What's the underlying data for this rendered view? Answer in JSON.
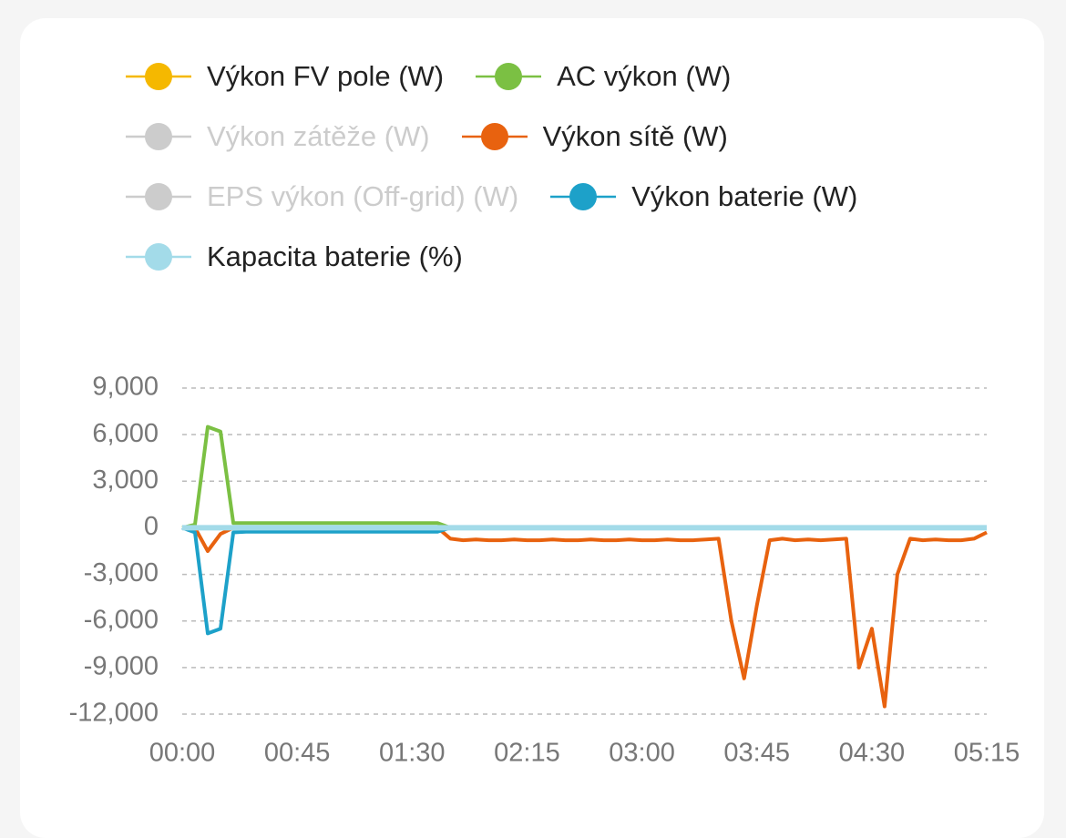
{
  "chart_data": {
    "type": "line",
    "x": [
      0,
      5,
      10,
      15,
      20,
      25,
      30,
      35,
      40,
      45,
      50,
      55,
      60,
      65,
      70,
      75,
      80,
      85,
      90,
      95,
      100,
      105,
      110,
      115,
      120,
      125,
      130,
      135,
      140,
      145,
      150,
      155,
      160,
      165,
      170,
      175,
      180,
      185,
      190,
      195,
      200,
      205,
      210,
      215,
      220,
      225,
      230,
      235,
      240,
      245,
      250,
      255,
      260,
      265,
      270,
      275,
      280,
      285,
      290,
      295,
      300,
      305,
      310,
      315
    ],
    "xlim": [
      0,
      315
    ],
    "xticks": [
      {
        "value": 0,
        "label": "00:00"
      },
      {
        "value": 45,
        "label": "00:45"
      },
      {
        "value": 90,
        "label": "01:30"
      },
      {
        "value": 135,
        "label": "02:15"
      },
      {
        "value": 180,
        "label": "03:00"
      },
      {
        "value": 225,
        "label": "03:45"
      },
      {
        "value": 270,
        "label": "04:30"
      },
      {
        "value": 315,
        "label": "05:15"
      }
    ],
    "ylim": [
      -12000,
      9000
    ],
    "yticks": [
      {
        "value": 9000,
        "label": "9,000"
      },
      {
        "value": 6000,
        "label": "6,000"
      },
      {
        "value": 3000,
        "label": "3,000"
      },
      0,
      {
        "value": -3000,
        "label": "-3,000"
      },
      {
        "value": -6000,
        "label": "-6,000"
      },
      {
        "value": -9000,
        "label": "-9,000"
      },
      {
        "value": -12000,
        "label": "-12,000"
      }
    ],
    "grid": true,
    "series": [
      {
        "name": "Výkon FV pole (W)",
        "color": "#f5b800",
        "visible": true,
        "values": [
          0,
          0,
          0,
          0,
          0,
          0,
          0,
          0,
          0,
          0,
          0,
          0,
          0,
          0,
          0,
          0,
          0,
          0,
          0,
          0,
          0,
          0,
          0,
          0,
          0,
          0,
          0,
          0,
          0,
          0,
          0,
          0,
          0,
          0,
          0,
          0,
          0,
          0,
          0,
          0,
          0,
          0,
          0,
          0,
          0,
          0,
          0,
          0,
          0,
          0,
          0,
          0,
          0,
          0,
          0,
          0,
          0,
          0,
          0,
          0,
          0,
          0,
          0,
          0
        ]
      },
      {
        "name": "AC výkon (W)",
        "color": "#7bc043",
        "visible": true,
        "values": [
          0,
          200,
          6500,
          6200,
          300,
          300,
          300,
          300,
          300,
          300,
          300,
          300,
          300,
          300,
          300,
          300,
          300,
          300,
          300,
          300,
          300,
          0,
          0,
          0,
          0,
          0,
          0,
          0,
          0,
          0,
          0,
          0,
          0,
          0,
          0,
          0,
          0,
          0,
          0,
          0,
          0,
          0,
          0,
          0,
          0,
          0,
          0,
          0,
          0,
          0,
          0,
          0,
          0,
          0,
          0,
          0,
          0,
          0,
          0,
          0,
          0,
          0,
          0,
          0
        ]
      },
      {
        "name": "Výkon zátěže (W)",
        "color": "#cccccc",
        "visible": false
      },
      {
        "name": "Výkon sítě (W)",
        "color": "#e8620f",
        "visible": true,
        "values": [
          0,
          0,
          -1500,
          -400,
          0,
          0,
          0,
          0,
          0,
          0,
          0,
          0,
          0,
          0,
          0,
          0,
          0,
          0,
          0,
          0,
          0,
          -700,
          -800,
          -750,
          -800,
          -800,
          -750,
          -800,
          -800,
          -750,
          -800,
          -800,
          -750,
          -800,
          -800,
          -750,
          -800,
          -800,
          -750,
          -800,
          -800,
          -750,
          -700,
          -6000,
          -9700,
          -5000,
          -800,
          -700,
          -800,
          -750,
          -800,
          -750,
          -700,
          -9000,
          -6500,
          -11500,
          -3000,
          -700,
          -800,
          -750,
          -800,
          -800,
          -700,
          -300
        ]
      },
      {
        "name": "EPS výkon (Off-grid) (W)",
        "color": "#cccccc",
        "visible": false
      },
      {
        "name": "Výkon baterie (W)",
        "color": "#1da1c9",
        "visible": true,
        "values": [
          0,
          -300,
          -6800,
          -6500,
          -300,
          -250,
          -250,
          -250,
          -250,
          -250,
          -250,
          -250,
          -250,
          -250,
          -250,
          -250,
          -250,
          -250,
          -250,
          -250,
          -250,
          0,
          0,
          0,
          0,
          0,
          0,
          0,
          0,
          0,
          0,
          0,
          0,
          0,
          0,
          0,
          0,
          0,
          0,
          0,
          0,
          0,
          0,
          0,
          0,
          0,
          0,
          0,
          0,
          0,
          0,
          0,
          0,
          0,
          0,
          0,
          0,
          0,
          0,
          0,
          0,
          0,
          0,
          0
        ]
      },
      {
        "name": "Kapacita baterie (%)",
        "color": "#a3dbe9",
        "visible": true,
        "values": [
          0,
          0,
          0,
          0,
          0,
          0,
          0,
          0,
          0,
          0,
          0,
          0,
          0,
          0,
          0,
          0,
          0,
          0,
          0,
          0,
          0,
          0,
          0,
          0,
          0,
          0,
          0,
          0,
          0,
          0,
          0,
          0,
          0,
          0,
          0,
          0,
          0,
          0,
          0,
          0,
          0,
          0,
          0,
          0,
          0,
          0,
          0,
          0,
          0,
          0,
          0,
          0,
          0,
          0,
          0,
          0,
          0,
          0,
          0,
          0,
          0,
          0,
          0,
          0
        ]
      }
    ]
  }
}
